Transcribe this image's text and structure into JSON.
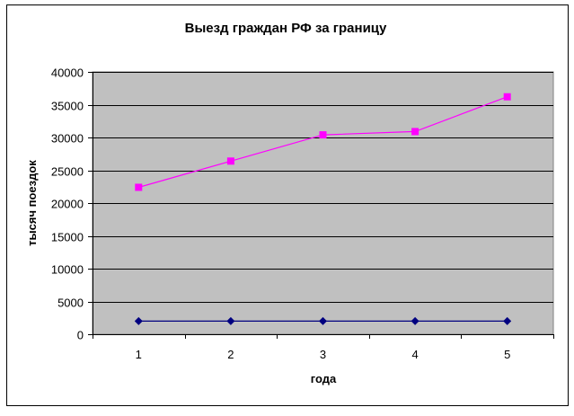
{
  "chart_data": {
    "type": "line",
    "title": "Выезд граждан РФ за границу",
    "xlabel": "года",
    "ylabel": "тысяч поездок",
    "categories": [
      "1",
      "2",
      "3",
      "4",
      "5"
    ],
    "ylim": [
      0,
      40000
    ],
    "yticks": [
      0,
      5000,
      10000,
      15000,
      20000,
      25000,
      30000,
      35000,
      40000
    ],
    "grid": true,
    "legend": "none",
    "series": [
      {
        "values": [
          2000,
          2000,
          2000,
          2000,
          2000
        ],
        "color": "#000080",
        "marker": "diamond"
      },
      {
        "values": [
          22400,
          26400,
          30400,
          30900,
          36200
        ],
        "color": "#FF00FF",
        "marker": "square"
      }
    ],
    "plot_background": "#C0C0C0"
  }
}
